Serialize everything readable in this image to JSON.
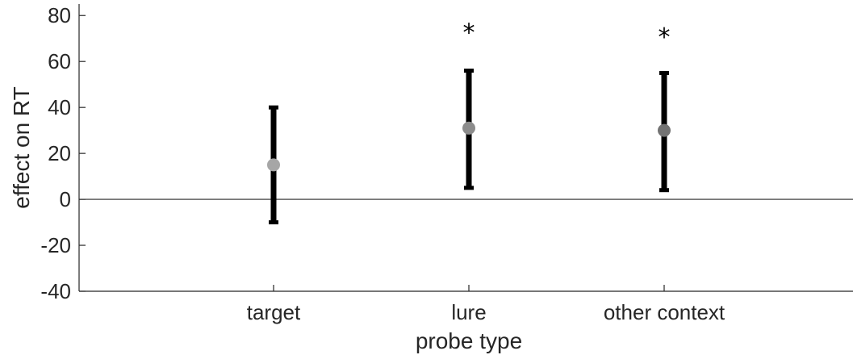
{
  "chart_data": {
    "type": "errorbar",
    "title": "",
    "xlabel": "probe type",
    "ylabel": "effect on RT",
    "ylim": [
      -40,
      85
    ],
    "yticks": [
      -40,
      -20,
      0,
      20,
      40,
      60,
      80
    ],
    "categories": [
      "target",
      "lure",
      "other context"
    ],
    "points": [
      {
        "category": "target",
        "value": 15,
        "lower": -10,
        "upper": 40,
        "color": "#a6a6a6",
        "significant": false
      },
      {
        "category": "lure",
        "value": 31,
        "lower": 5,
        "upper": 56,
        "color": "#8c8c8c",
        "significant": true
      },
      {
        "category": "other context",
        "value": 30,
        "lower": 4,
        "upper": 55,
        "color": "#737373",
        "significant": true
      }
    ],
    "significance_marker": "*",
    "significance_marker_y": [
      null,
      74,
      72
    ],
    "zero_line": true,
    "grid": false,
    "legend": "none"
  }
}
